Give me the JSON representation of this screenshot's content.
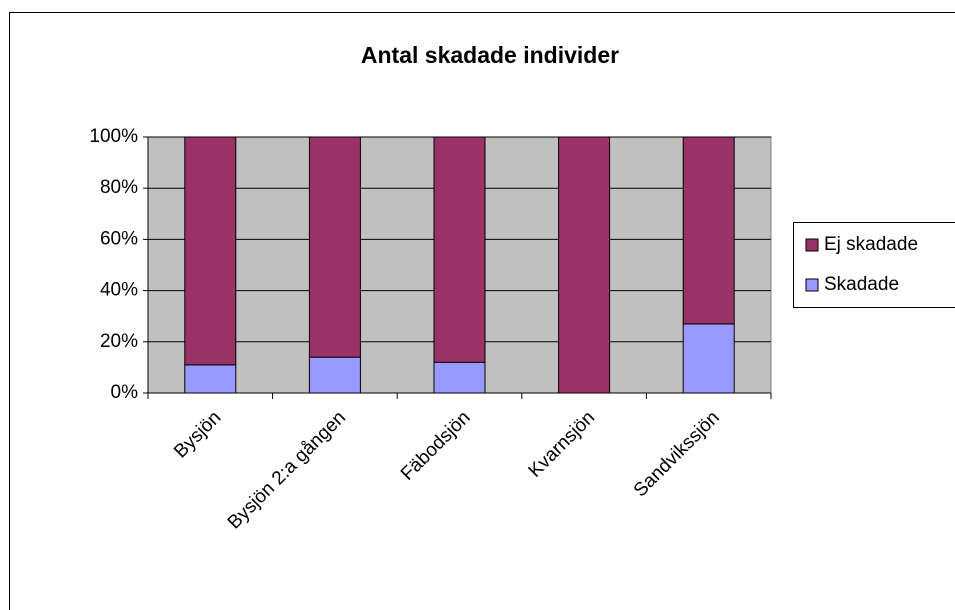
{
  "chart_data": {
    "type": "stacked_bar_100",
    "title": "Antal skadade individer",
    "categories": [
      "Bysjön",
      "Bysjön 2:a gången",
      "Fäbodsjön",
      "Kvarnsjön",
      "Sandvikssjön"
    ],
    "series": [
      {
        "name": "Skadade",
        "color": "#9999FF",
        "values": [
          11,
          14,
          12,
          0,
          27
        ]
      },
      {
        "name": "Ej skadade",
        "color": "#993366",
        "values": [
          89,
          86,
          88,
          100,
          73
        ]
      }
    ],
    "ylim": [
      0,
      100
    ],
    "yticks": [
      {
        "value": 0,
        "label": "0%"
      },
      {
        "value": 20,
        "label": "20%"
      },
      {
        "value": 40,
        "label": "40%"
      },
      {
        "value": 60,
        "label": "60%"
      },
      {
        "value": 80,
        "label": "80%"
      },
      {
        "value": 100,
        "label": "100%"
      }
    ],
    "grid": true,
    "legend": "right"
  }
}
